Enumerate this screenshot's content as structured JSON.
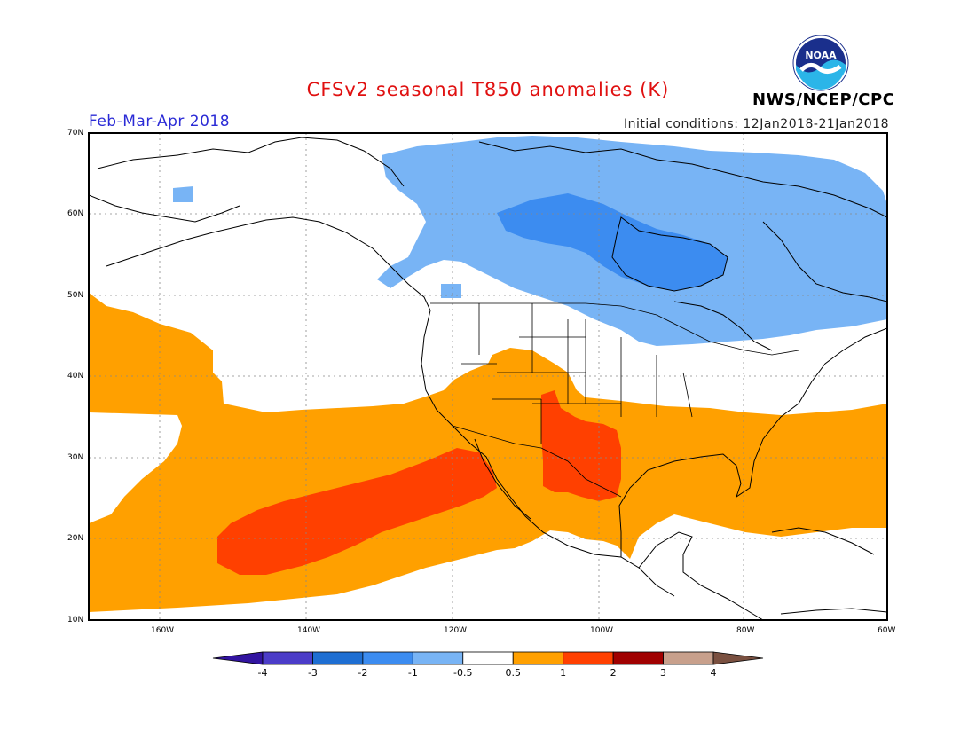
{
  "title": "CFSv2 seasonal T850 anomalies (K)",
  "period": "Feb-Mar-Apr 2018",
  "initial_conditions": "Initial conditions: 12Jan2018-21Jan2018",
  "agency": "NWS/NCEP/CPC",
  "logo_text": "NOAA",
  "lat_labels": [
    "70N",
    "60N",
    "50N",
    "40N",
    "30N",
    "20N",
    "10N"
  ],
  "lon_labels": [
    "160W",
    "140W",
    "120W",
    "100W",
    "80W",
    "60W"
  ],
  "colorbar": {
    "labels": [
      "-4",
      "-3",
      "-2",
      "-1",
      "-0.5",
      "0.5",
      "1",
      "2",
      "3",
      "4"
    ],
    "colors": [
      "#3214a0",
      "#4b3cc8",
      "#1e6ed2",
      "#3c8cf0",
      "#78b4f5",
      "#ffffff",
      "#ffa000",
      "#ff4000",
      "#a00000",
      "#c8a08c",
      "#7a5040"
    ]
  },
  "map_colors": {
    "warm_05_1": "#ffa000",
    "warm_1_2": "#ff4000",
    "cool_m1_m05": "#78b4f5",
    "cool_m2_m1": "#3c8cf0",
    "coastline": "#000000"
  }
}
